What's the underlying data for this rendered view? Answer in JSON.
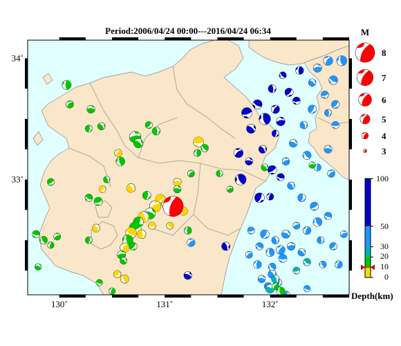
{
  "title": "Period:2006/04/24 00:00---2016/04/24 06:34",
  "axes": {
    "lon_ticks": [
      {
        "lon": 130,
        "label": "130˚"
      },
      {
        "lon": 131,
        "label": "131˚"
      },
      {
        "lon": 132,
        "label": "132˚"
      }
    ],
    "lat_ticks": [
      {
        "lat": 34,
        "label": "34˚"
      },
      {
        "lat": 33,
        "label": "33˚"
      }
    ],
    "lon_range": [
      129.7,
      132.75
    ],
    "lat_range": [
      32.05,
      34.15
    ]
  },
  "magnitude_legend": {
    "title": "M",
    "items": [
      {
        "m": 8,
        "label": "8"
      },
      {
        "m": 7,
        "label": "7"
      },
      {
        "m": 6,
        "label": "6"
      },
      {
        "m": 5,
        "label": "5"
      },
      {
        "m": 4,
        "label": "4"
      },
      {
        "m": 3,
        "label": "3"
      }
    ],
    "color": "#ff0000"
  },
  "depth_scale": {
    "title": "Depth(km)",
    "ticks": [
      {
        "value": 0,
        "label": "0"
      },
      {
        "value": 10,
        "label": "10"
      },
      {
        "value": 20,
        "label": "20"
      },
      {
        "value": 30,
        "label": "30"
      },
      {
        "value": 50,
        "label": "50"
      },
      {
        "value": 100,
        "label": "100"
      }
    ],
    "bands": [
      {
        "from": 0,
        "to": 10,
        "color": "#ffd700"
      },
      {
        "from": 10,
        "to": 20,
        "color": "#00c800"
      },
      {
        "from": 20,
        "to": 30,
        "color": "#00b4b4"
      },
      {
        "from": 30,
        "to": 50,
        "color": "#1e96ff"
      },
      {
        "from": 50,
        "to": 100,
        "color": "#0000c8"
      }
    ],
    "marker_depth": 10
  },
  "colors": {
    "sea": "#e0ffff",
    "land": "#fae6c8",
    "frame": "#000000"
  },
  "chart_data": {
    "type": "scatter",
    "title": "Period:2006/04/24 00:00---2016/04/24 06:34",
    "x_axis": "longitude",
    "y_axis": "latitude",
    "xlim": [
      129.7,
      132.75
    ],
    "ylim": [
      32.05,
      34.15
    ],
    "legend": "right",
    "point_fields": [
      "lon",
      "lat",
      "magnitude",
      "depth_km"
    ],
    "points": [
      [
        131.08,
        32.78,
        6.5,
        11
      ],
      [
        130.07,
        33.78,
        4.0,
        15
      ],
      [
        130.1,
        33.62,
        3.6,
        15
      ],
      [
        130.3,
        33.58,
        3.7,
        15
      ],
      [
        130.4,
        33.44,
        3.6,
        15
      ],
      [
        130.28,
        33.42,
        3.5,
        15
      ],
      [
        129.92,
        32.98,
        3.5,
        15
      ],
      [
        129.78,
        32.55,
        3.6,
        15
      ],
      [
        129.85,
        32.5,
        3.7,
        15
      ],
      [
        129.92,
        32.46,
        3.4,
        15
      ],
      [
        129.98,
        32.53,
        3.5,
        15
      ],
      [
        129.8,
        32.28,
        3.4,
        15
      ],
      [
        130.45,
        33.0,
        3.4,
        15
      ],
      [
        130.41,
        32.92,
        3.5,
        8
      ],
      [
        130.37,
        32.82,
        3.8,
        15
      ],
      [
        130.28,
        32.85,
        3.6,
        15
      ],
      [
        130.58,
        33.15,
        3.9,
        15
      ],
      [
        130.56,
        33.22,
        3.6,
        8
      ],
      [
        130.72,
        33.35,
        4.5,
        15
      ],
      [
        130.75,
        33.3,
        4.0,
        15
      ],
      [
        130.92,
        33.4,
        3.7,
        15
      ],
      [
        130.85,
        33.45,
        3.5,
        15
      ],
      [
        131.32,
        33.31,
        4.2,
        8
      ],
      [
        131.38,
        33.26,
        3.6,
        15
      ],
      [
        131.31,
        33.22,
        3.5,
        15
      ],
      [
        131.25,
        33.05,
        3.5,
        15
      ],
      [
        131.12,
        32.98,
        3.7,
        8
      ],
      [
        130.68,
        32.93,
        3.9,
        8
      ],
      [
        130.83,
        32.87,
        3.8,
        15
      ],
      [
        130.96,
        32.84,
        4.1,
        8
      ],
      [
        131.02,
        32.8,
        4.3,
        8
      ],
      [
        131.1,
        32.77,
        4.5,
        8
      ],
      [
        131.18,
        32.74,
        3.8,
        8
      ],
      [
        130.91,
        32.78,
        4.5,
        8
      ],
      [
        130.86,
        32.72,
        4.4,
        15
      ],
      [
        130.8,
        32.69,
        4.4,
        8
      ],
      [
        130.75,
        32.65,
        4.2,
        15
      ],
      [
        130.72,
        32.6,
        4.6,
        15
      ],
      [
        130.68,
        32.56,
        4.4,
        8
      ],
      [
        130.65,
        32.5,
        4.3,
        15
      ],
      [
        130.62,
        32.44,
        4.0,
        8
      ],
      [
        130.59,
        32.38,
        3.8,
        15
      ],
      [
        130.61,
        32.33,
        3.5,
        15
      ],
      [
        130.78,
        32.55,
        3.9,
        8
      ],
      [
        130.7,
        32.45,
        3.7,
        15
      ],
      [
        130.88,
        32.62,
        3.6,
        8
      ],
      [
        131.05,
        32.62,
        3.5,
        8
      ],
      [
        131.22,
        32.58,
        3.6,
        15
      ],
      [
        131.25,
        32.48,
        3.7,
        30
      ],
      [
        131.12,
        32.92,
        3.6,
        15
      ],
      [
        130.35,
        32.6,
        3.7,
        8
      ],
      [
        130.28,
        32.5,
        3.5,
        15
      ],
      [
        130.55,
        32.22,
        3.6,
        8
      ],
      [
        130.38,
        32.15,
        3.4,
        15
      ],
      [
        130.62,
        32.18,
        3.8,
        8
      ],
      [
        130.5,
        32.08,
        3.4,
        15
      ],
      [
        131.62,
        32.92,
        3.4,
        15
      ],
      [
        131.22,
        32.21,
        3.7,
        60
      ],
      [
        131.58,
        32.45,
        3.8,
        60
      ],
      [
        131.9,
        32.85,
        4.1,
        60
      ],
      [
        131.78,
        33.55,
        4.3,
        60
      ],
      [
        131.88,
        33.62,
        4.0,
        60
      ],
      [
        131.95,
        33.5,
        4.5,
        60
      ],
      [
        132.05,
        33.58,
        3.8,
        60
      ],
      [
        132.1,
        33.48,
        3.9,
        60
      ],
      [
        131.82,
        33.42,
        4.0,
        60
      ],
      [
        132.02,
        33.75,
        3.7,
        60
      ],
      [
        132.18,
        33.72,
        3.8,
        60
      ],
      [
        132.25,
        33.65,
        3.6,
        60
      ],
      [
        132.12,
        33.86,
        3.5,
        60
      ],
      [
        132.28,
        33.9,
        3.7,
        60
      ],
      [
        131.7,
        33.22,
        4.0,
        60
      ],
      [
        131.8,
        33.15,
        3.6,
        60
      ],
      [
        131.93,
        33.25,
        3.7,
        60
      ],
      [
        132.05,
        33.38,
        3.5,
        60
      ],
      [
        132.02,
        33.08,
        3.9,
        60
      ],
      [
        132.1,
        33.02,
        3.6,
        60
      ],
      [
        131.72,
        33.0,
        4.4,
        60
      ],
      [
        132.0,
        32.86,
        3.5,
        60
      ],
      [
        132.15,
        33.15,
        3.6,
        40
      ],
      [
        132.22,
        33.3,
        3.7,
        40
      ],
      [
        132.32,
        33.45,
        3.6,
        40
      ],
      [
        132.4,
        33.58,
        3.8,
        40
      ],
      [
        132.52,
        33.7,
        3.6,
        40
      ],
      [
        132.6,
        33.82,
        3.9,
        40
      ],
      [
        132.68,
        33.98,
        4.2,
        40
      ],
      [
        132.55,
        33.98,
        4.0,
        40
      ],
      [
        132.45,
        33.92,
        3.8,
        40
      ],
      [
        132.4,
        33.8,
        3.6,
        40
      ],
      [
        132.55,
        33.55,
        3.5,
        40
      ],
      [
        132.62,
        33.62,
        3.7,
        40
      ],
      [
        132.62,
        33.45,
        3.6,
        40
      ],
      [
        132.35,
        33.2,
        3.8,
        40
      ],
      [
        132.45,
        33.1,
        3.5,
        40
      ],
      [
        132.58,
        33.05,
        3.6,
        40
      ],
      [
        132.55,
        33.25,
        3.7,
        40
      ],
      [
        132.2,
        32.95,
        3.6,
        40
      ],
      [
        132.3,
        32.85,
        3.7,
        40
      ],
      [
        132.42,
        32.78,
        3.8,
        40
      ],
      [
        132.55,
        32.7,
        3.6,
        40
      ],
      [
        132.45,
        32.65,
        3.9,
        40
      ],
      [
        132.35,
        32.58,
        3.7,
        40
      ],
      [
        132.25,
        32.62,
        3.5,
        40
      ],
      [
        132.15,
        32.55,
        3.8,
        40
      ],
      [
        132.05,
        32.5,
        3.6,
        40
      ],
      [
        131.95,
        32.55,
        3.9,
        40
      ],
      [
        131.82,
        32.58,
        3.5,
        40
      ],
      [
        131.9,
        32.45,
        3.6,
        40
      ],
      [
        132.0,
        32.4,
        3.8,
        40
      ],
      [
        132.1,
        32.42,
        3.9,
        40
      ],
      [
        132.2,
        32.45,
        3.7,
        40
      ],
      [
        132.3,
        32.4,
        3.6,
        40
      ],
      [
        132.48,
        32.5,
        3.5,
        40
      ],
      [
        132.6,
        32.45,
        3.6,
        40
      ],
      [
        132.12,
        32.35,
        3.8,
        40
      ],
      [
        132.02,
        32.28,
        3.6,
        40
      ],
      [
        131.88,
        32.3,
        3.7,
        40
      ],
      [
        131.8,
        32.38,
        3.5,
        40
      ],
      [
        131.92,
        32.18,
        3.6,
        40
      ],
      [
        132.02,
        32.22,
        3.8,
        40
      ],
      [
        132.08,
        32.15,
        3.5,
        40
      ],
      [
        131.98,
        32.12,
        3.6,
        40
      ],
      [
        132.35,
        32.1,
        3.4,
        40
      ],
      [
        132.5,
        32.3,
        3.5,
        40
      ],
      [
        132.65,
        32.3,
        3.6,
        40
      ],
      [
        132.7,
        32.55,
        3.5,
        40
      ],
      [
        132.0,
        32.1,
        3.9,
        25
      ],
      [
        132.05,
        32.18,
        3.7,
        25
      ],
      [
        132.15,
        32.05,
        3.6,
        25
      ],
      [
        132.25,
        32.25,
        3.5,
        25
      ],
      [
        132.35,
        32.32,
        3.6,
        25
      ],
      [
        132.1,
        32.08,
        3.8,
        15
      ],
      [
        132.05,
        32.12,
        3.5,
        15
      ],
      [
        132.4,
        33.12,
        3.4,
        15
      ],
      [
        131.95,
        33.1,
        3.5,
        15
      ],
      [
        131.52,
        33.05,
        3.4,
        15
      ]
    ]
  }
}
